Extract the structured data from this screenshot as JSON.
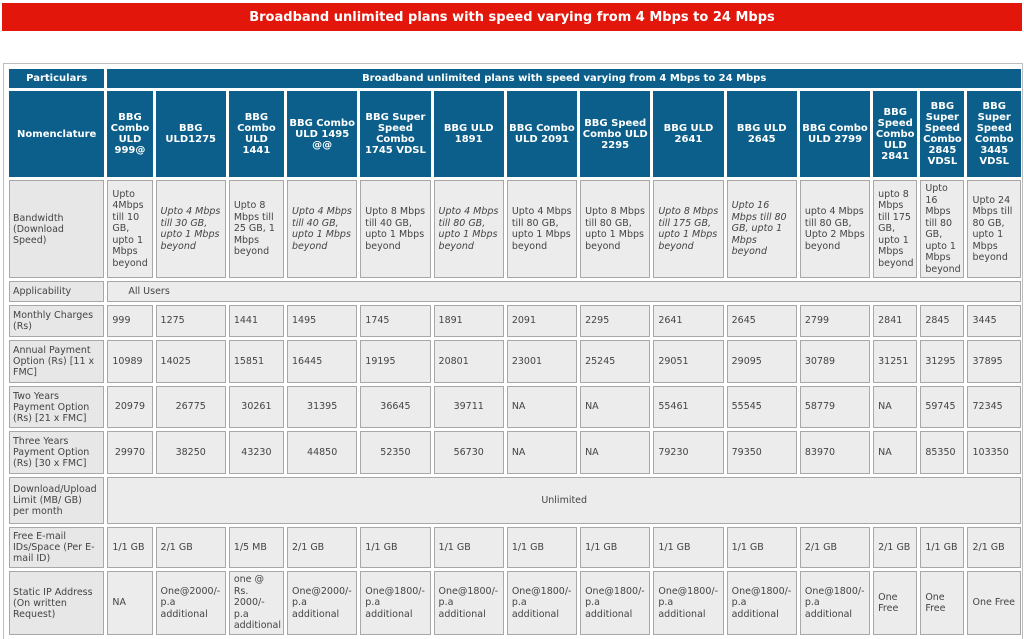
{
  "banner": {
    "title": "Broadband unlimited plans with speed varying from 4 Mbps to 24 Mbps"
  },
  "table": {
    "particulars_label": "Particulars",
    "section_title": "Broadband unlimited plans with speed varying from 4 Mbps to 24 Mbps",
    "nomenclature_label": "Nomenclature",
    "plans": [
      "BBG Combo ULD 999@",
      "BBG ULD1275",
      "BBG Combo ULD 1441",
      "BBG Combo ULD 1495 @@",
      "BBG Super Speed Combo 1745 VDSL",
      "BBG ULD 1891",
      "BBG Combo ULD 2091",
      "BBG Speed Combo ULD 2295",
      "BBG ULD 2641",
      "BBG ULD 2645",
      "BBG Combo ULD 2799",
      "BBG Speed Combo ULD 2841",
      "BBG Super Speed Combo 2845 VDSL",
      "BBG Super Speed Combo 3445 VDSL"
    ],
    "bandwidth": {
      "label": "Bandwidth (Download Speed)",
      "values": [
        "Upto 4Mbps till 10 GB, upto 1 Mbps beyond",
        "Upto 4 Mbps till 30 GB, upto 1 Mbps beyond",
        "Upto 8 Mbps till 25 GB, 1 Mbps beyond",
        "Upto 4 Mbps till 40 GB, upto 1 Mbps beyond",
        "Upto 8 Mbps till 40 GB, upto 1 Mbps beyond",
        "Upto 4 Mbps till 80 GB, upto 1 Mbps beyond",
        "Upto 4 Mbps till 80 GB, upto 1 Mbps beyond",
        "Upto 8 Mbps till 80 GB, upto 1 Mbps beyond",
        "Upto 8 Mbps till 175 GB, upto 1 Mbps beyond",
        "Upto 16 Mbps till 80 GB, upto 1 Mbps beyond",
        "upto 4 Mbps till 80 GB, Upto 2 Mbps beyond",
        "upto 8 Mbps till 175 GB, upto 1 Mbps beyond",
        "Upto 16 Mbps till 80 GB, upto 1 Mbps beyond",
        "Upto 24 Mbps till 80 GB, upto 1 Mbps beyond"
      ]
    },
    "applicability": {
      "label": "Applicability",
      "value": "All Users"
    },
    "monthly": {
      "label": "Monthly Charges (Rs)",
      "values": [
        "999",
        "1275",
        "1441",
        "1495",
        "1745",
        "1891",
        "2091",
        "2295",
        "2641",
        "2645",
        "2799",
        "2841",
        "2845",
        "3445"
      ]
    },
    "annual": {
      "label": "Annual Payment Option (Rs) [11 x FMC]",
      "values": [
        "10989",
        "14025",
        "15851",
        "16445",
        "19195",
        "20801",
        "23001",
        "25245",
        "29051",
        "29095",
        "30789",
        "31251",
        "31295",
        "37895"
      ]
    },
    "two_years": {
      "label": "Two Years Payment Option (Rs) [21 x FMC]",
      "values": [
        "20979",
        "26775",
        "30261",
        "31395",
        "36645",
        "39711",
        "NA",
        "NA",
        "55461",
        "55545",
        "58779",
        "NA",
        "59745",
        "72345"
      ]
    },
    "three_years": {
      "label": "Three Years Payment Option (Rs) [30 x FMC]",
      "values": [
        "29970",
        "38250",
        "43230",
        "44850",
        "52350",
        "56730",
        "NA",
        "NA",
        "79230",
        "79350",
        "83970",
        "NA",
        "85350",
        "103350"
      ]
    },
    "limit": {
      "label": "Download/Upload Limit (MB/ GB) per month",
      "value": "Unlimited"
    },
    "email": {
      "label": "Free E-mail IDs/Space (Per E-mail ID)",
      "values": [
        "1/1 GB",
        "2/1 GB",
        "1/5 MB",
        "2/1 GB",
        "1/1 GB",
        "1/1 GB",
        "1/1 GB",
        "1/1 GB",
        "1/1 GB",
        "1/1 GB",
        "2/1 GB",
        "2/1 GB",
        "1/1 GB",
        "2/1 GB"
      ]
    },
    "static_ip": {
      "label": "Static IP Address (On written Request)",
      "values": [
        "NA",
        "One@2000/-p.a additional",
        "one @ Rs. 2000/-p.a additional",
        "One@2000/-p.a additional",
        "One@1800/-p.a additional",
        "One@1800/-p.a additional",
        "One@1800/-p.a additional",
        "One@1800/-p.a additional",
        "One@1800/-p.a additional",
        "One@1800/-p.a additional",
        "One@1800/-p.a additional",
        "One Free",
        "One Free",
        "One Free"
      ]
    }
  }
}
